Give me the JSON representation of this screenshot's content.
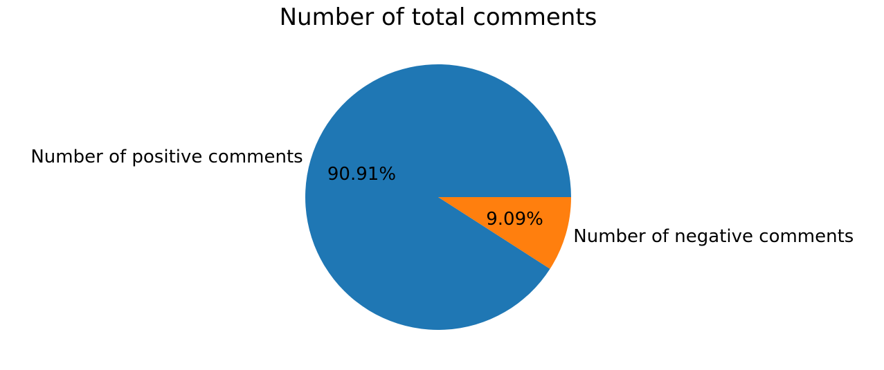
{
  "chart_data": {
    "type": "pie",
    "title": "Number of total comments",
    "slices": [
      {
        "label": "Number of positive comments",
        "value": 90.91,
        "display": "90.91%",
        "color": "#1f77b4"
      },
      {
        "label": "Number of negative comments",
        "value": 9.09,
        "display": "9.09%",
        "color": "#ff7f0e"
      }
    ],
    "start_angle_deg": 0,
    "direction": "counterclockwise",
    "legend": "none"
  }
}
